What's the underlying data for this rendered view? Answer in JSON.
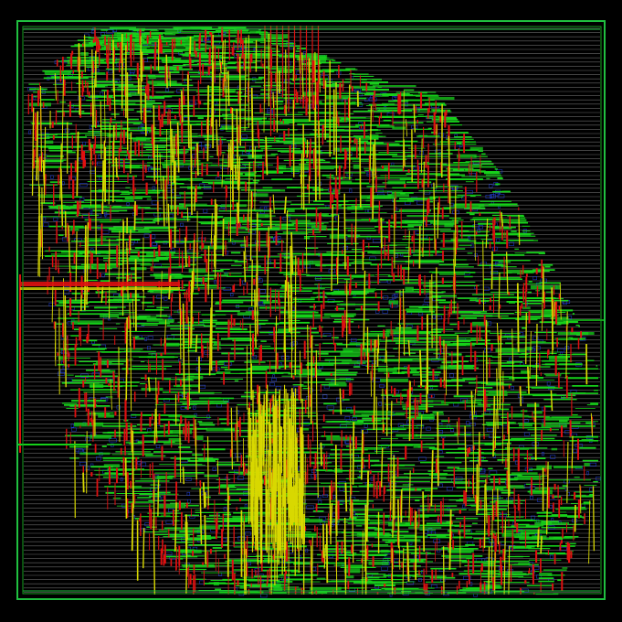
{
  "view": {
    "background_color": "#000000",
    "layers": [
      {
        "name": "power-rails",
        "color": "#7a7a7a"
      },
      {
        "name": "metal-horizontal",
        "color": "#16d01a"
      },
      {
        "name": "metal-vertical",
        "color": "#e01010"
      },
      {
        "name": "metal-top",
        "color": "#d8d800"
      },
      {
        "name": "cells",
        "color": "#2040e0"
      },
      {
        "name": "die-boundary",
        "color": "#20c040"
      }
    ]
  }
}
